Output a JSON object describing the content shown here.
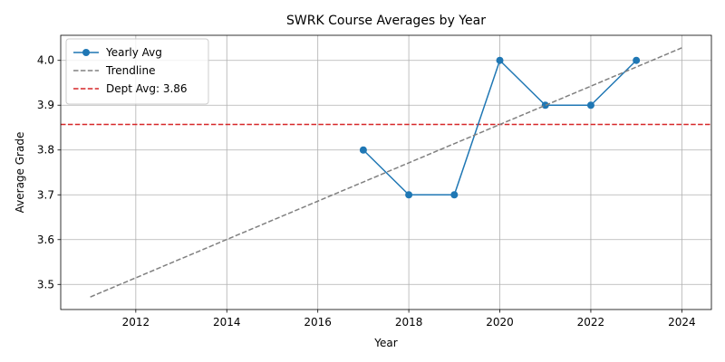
{
  "chart_data": {
    "type": "line",
    "title": "SWRK Course Averages by Year",
    "xlabel": "Year",
    "ylabel": "Average Grade",
    "xlim": [
      2010.35,
      2024.65
    ],
    "ylim": [
      3.444,
      4.056
    ],
    "xticks": [
      2012,
      2014,
      2016,
      2018,
      2020,
      2022,
      2024
    ],
    "yticks": [
      3.5,
      3.6,
      3.7,
      3.8,
      3.9,
      4.0
    ],
    "ytick_labels": [
      "3.5",
      "3.6",
      "3.7",
      "3.8",
      "3.9",
      "4.0"
    ],
    "grid": true,
    "legend_position": "top-left",
    "series": [
      {
        "name": "Yearly Avg",
        "style": "line-marker",
        "color": "#1f77b4",
        "x": [
          2017,
          2018,
          2019,
          2020,
          2021,
          2022,
          2023
        ],
        "values": [
          3.8,
          3.7,
          3.7,
          4.0,
          3.9,
          3.9,
          4.0
        ]
      },
      {
        "name": "Trendline",
        "style": "dashed",
        "color": "#808080",
        "x": [
          2011,
          2024
        ],
        "values": [
          3.472,
          4.028
        ]
      }
    ],
    "reference_lines": [
      {
        "name": "Dept Avg: 3.86",
        "orientation": "horizontal",
        "value": 3.857,
        "color": "#d62728",
        "style": "dashed"
      }
    ]
  }
}
